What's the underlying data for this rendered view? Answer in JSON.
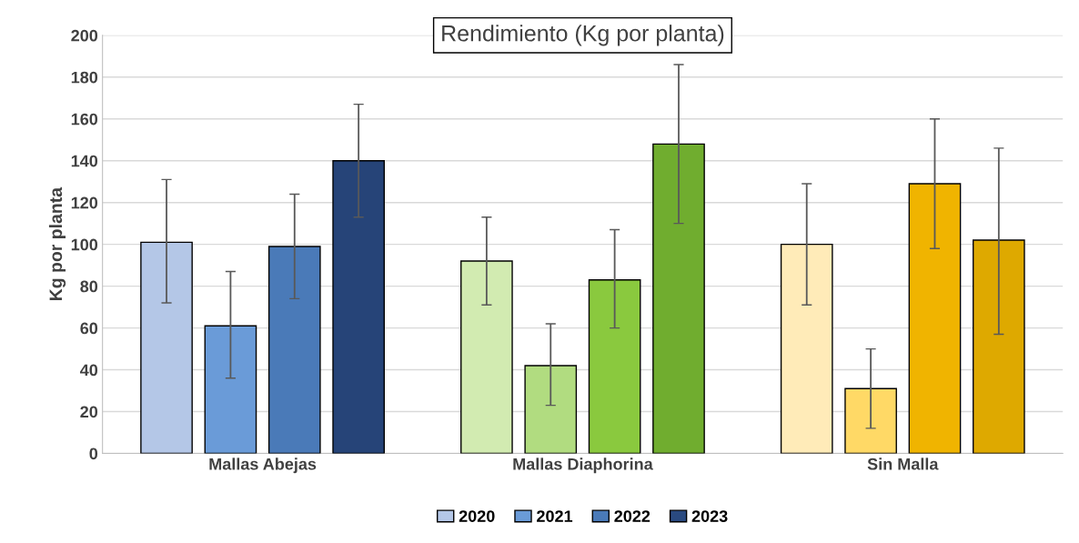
{
  "chart_data": {
    "type": "bar",
    "title": "Rendimiento (Kg por planta)",
    "ylabel": "Kg por planta",
    "categories": [
      "Mallas Abejas",
      "Mallas Diaphorina",
      "Sin Malla"
    ],
    "series": [
      {
        "name": "2020",
        "color": "#b4c7e7",
        "colors": [
          "#b4c7e7",
          "#d2ebb1",
          "#ffebb8"
        ],
        "values": [
          101,
          92,
          100
        ],
        "errors": [
          [
            72,
            131
          ],
          [
            71,
            113
          ],
          [
            71,
            129
          ]
        ]
      },
      {
        "name": "2021",
        "color": "#6a9bd8",
        "colors": [
          "#6a9bd8",
          "#b1dc80",
          "#ffd966"
        ],
        "values": [
          61,
          42,
          31
        ],
        "errors": [
          [
            36,
            87
          ],
          [
            23,
            62
          ],
          [
            12,
            50
          ]
        ]
      },
      {
        "name": "2022",
        "color": "#4a7ab8",
        "colors": [
          "#4a7ab8",
          "#8ac93e",
          "#f0b400"
        ],
        "values": [
          99,
          83,
          129
        ],
        "errors": [
          [
            74,
            124
          ],
          [
            60,
            107
          ],
          [
            98,
            160
          ]
        ]
      },
      {
        "name": "2023",
        "color": "#2a4a80",
        "colors": [
          "#264478",
          "#70ad2f",
          "#dea900"
        ],
        "values": [
          140,
          148,
          102
        ],
        "errors": [
          [
            113,
            167
          ],
          [
            110,
            186
          ],
          [
            57,
            146
          ]
        ]
      }
    ],
    "ylim": [
      0,
      200
    ],
    "yticks": [
      0,
      20,
      40,
      60,
      80,
      100,
      120,
      140,
      160,
      180,
      200
    ],
    "grid": "y",
    "legend": "bottom"
  }
}
